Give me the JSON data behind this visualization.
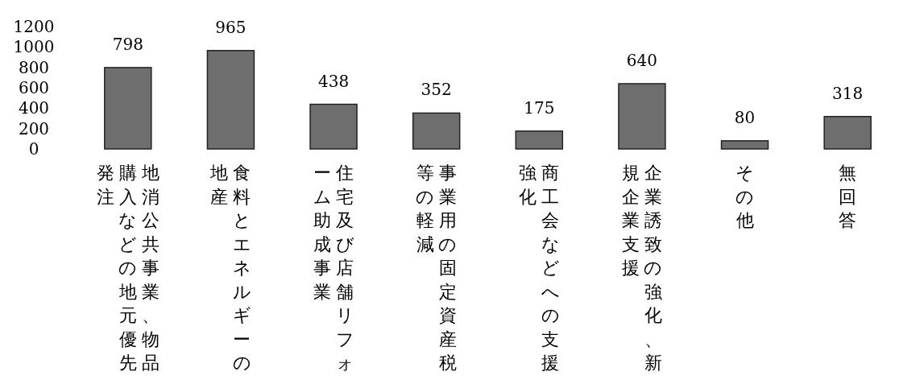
{
  "chart_data": {
    "type": "bar",
    "categories": [
      "地消公共事業、物品購入などの地元優先発注",
      "食料とエネルギーの地産",
      "住宅及び店舗リフォーム助成事業",
      "事業用の固定資産税等の軽減",
      "商工会などへの支援強化",
      "企業誘致の強化、新規企業支援",
      "その他",
      "無回答"
    ],
    "values": [
      798,
      965,
      438,
      352,
      175,
      640,
      80,
      318
    ],
    "color": "#6e6e6e",
    "ylim": [
      0,
      1200
    ],
    "yticks": [
      0,
      200,
      400,
      600,
      800,
      1000,
      1200
    ],
    "data_labels": true
  }
}
